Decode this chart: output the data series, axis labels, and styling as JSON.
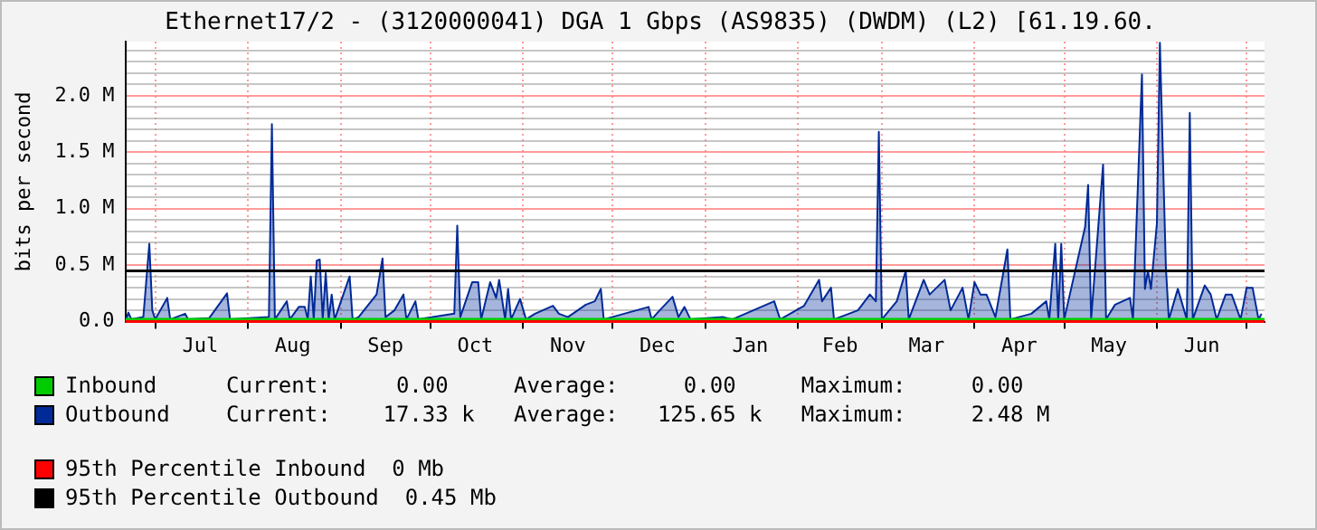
{
  "chart_data": {
    "type": "area",
    "title": "Ethernet17/2 - (3120000041) DGA 1 Gbps (AS9835) (DWDM) (L2) [61.19.60.",
    "ylabel": "bits per second",
    "xlim": [
      "2000-06-21",
      "2001-07-07"
    ],
    "xticks": [
      {
        "value": "2000-07-01",
        "label": null
      },
      {
        "value": "2000-07-16",
        "label": "Jul"
      },
      {
        "value": "2000-08-01",
        "label": null
      },
      {
        "value": "2000-08-16",
        "label": "Aug"
      },
      {
        "value": "2000-09-01",
        "label": null
      },
      {
        "value": "2000-09-16",
        "label": "Sep"
      },
      {
        "value": "2000-10-01",
        "label": null
      },
      {
        "value": "2000-10-16",
        "label": "Oct"
      },
      {
        "value": "2000-11-01",
        "label": null
      },
      {
        "value": "2000-11-16",
        "label": "Nov"
      },
      {
        "value": "2000-12-01",
        "label": null
      },
      {
        "value": "2000-12-16",
        "label": "Dec"
      },
      {
        "value": "2001-01-01",
        "label": null
      },
      {
        "value": "2001-01-16",
        "label": "Jan"
      },
      {
        "value": "2001-02-01",
        "label": null
      },
      {
        "value": "2001-02-15",
        "label": "Feb"
      },
      {
        "value": "2001-03-01",
        "label": null
      },
      {
        "value": "2001-03-16",
        "label": "Mar"
      },
      {
        "value": "2001-04-01",
        "label": null
      },
      {
        "value": "2001-04-16",
        "label": "Apr"
      },
      {
        "value": "2001-05-01",
        "label": null
      },
      {
        "value": "2001-05-16",
        "label": "May"
      },
      {
        "value": "2001-06-01",
        "label": null
      },
      {
        "value": "2001-06-16",
        "label": "Jun"
      },
      {
        "value": "2001-07-01",
        "label": null
      }
    ],
    "ylim": [
      0,
      2.48
    ],
    "yticks": [
      {
        "value": 0,
        "label": "0.0"
      },
      {
        "value": 0.1,
        "label": null
      },
      {
        "value": 0.2,
        "label": null
      },
      {
        "value": 0.3,
        "label": null
      },
      {
        "value": 0.4,
        "label": null
      },
      {
        "value": 0.5,
        "label": "0.5 M"
      },
      {
        "value": 0.6,
        "label": null
      },
      {
        "value": 0.7,
        "label": null
      },
      {
        "value": 0.8,
        "label": null
      },
      {
        "value": 0.9,
        "label": null
      },
      {
        "value": 1.0,
        "label": "1.0 M"
      },
      {
        "value": 1.1,
        "label": null
      },
      {
        "value": 1.2,
        "label": null
      },
      {
        "value": 1.3,
        "label": null
      },
      {
        "value": 1.4,
        "label": null
      },
      {
        "value": 1.5,
        "label": "1.5 M"
      },
      {
        "value": 1.6,
        "label": null
      },
      {
        "value": 1.7,
        "label": null
      },
      {
        "value": 1.8,
        "label": null
      },
      {
        "value": 1.9,
        "label": null
      },
      {
        "value": 2.0,
        "label": "2.0 M"
      },
      {
        "value": 2.1,
        "label": null
      },
      {
        "value": 2.2,
        "label": null
      },
      {
        "value": 2.3,
        "label": null
      },
      {
        "value": 2.4,
        "label": null
      }
    ],
    "grid": true,
    "legend": "bottom",
    "series": [
      {
        "name": "Inbound",
        "type": "line",
        "color": "#00cc00",
        "x": [
          "2000-06-21",
          "2001-07-07"
        ],
        "values": [
          0,
          0
        ]
      },
      {
        "name": "Outbound",
        "color": "#002a97",
        "x": [
          "2000-06-21",
          "2000-06-22",
          "2000-06-23",
          "2000-06-27",
          "2000-06-29",
          "2000-06-30",
          "2000-07-01",
          "2000-07-05",
          "2000-07-06",
          "2000-07-11",
          "2000-07-12",
          "2000-07-19",
          "2000-07-25",
          "2000-07-26",
          "2000-08-08",
          "2000-08-09",
          "2000-08-10",
          "2000-08-14",
          "2000-08-15",
          "2000-08-18",
          "2000-08-20",
          "2000-08-21",
          "2000-08-22",
          "2000-08-23",
          "2000-08-24",
          "2000-08-25",
          "2000-08-26",
          "2000-08-27",
          "2000-08-28",
          "2000-08-29",
          "2000-08-30",
          "2000-09-04",
          "2000-09-05",
          "2000-09-07",
          "2000-09-13",
          "2000-09-15",
          "2000-09-16",
          "2000-09-19",
          "2000-09-22",
          "2000-09-23",
          "2000-09-26",
          "2000-09-27",
          "2000-10-09",
          "2000-10-10",
          "2000-10-11",
          "2000-10-15",
          "2000-10-17",
          "2000-10-18",
          "2000-10-21",
          "2000-10-23",
          "2000-10-24",
          "2000-10-26",
          "2000-10-27",
          "2000-10-28",
          "2000-10-31",
          "2000-11-02",
          "2000-11-05",
          "2000-11-11",
          "2000-11-13",
          "2000-11-16",
          "2000-11-22",
          "2000-11-25",
          "2000-11-27",
          "2000-11-28",
          "2000-12-13",
          "2000-12-14",
          "2000-12-16",
          "2000-12-21",
          "2000-12-23",
          "2000-12-25",
          "2000-12-27",
          "2001-01-07",
          "2001-01-10",
          "2001-01-24",
          "2001-01-26",
          "2001-02-03",
          "2001-02-08",
          "2001-02-09",
          "2001-02-12",
          "2001-02-13",
          "2001-02-21",
          "2001-02-25",
          "2001-02-27",
          "2001-02-28",
          "2001-03-01",
          "2001-03-06",
          "2001-03-09",
          "2001-03-10",
          "2001-03-15",
          "2001-03-17",
          "2001-03-22",
          "2001-03-24",
          "2001-03-28",
          "2001-03-30",
          "2001-04-01",
          "2001-04-03",
          "2001-04-05",
          "2001-04-08",
          "2001-04-12",
          "2001-04-13",
          "2001-04-20",
          "2001-04-25",
          "2001-04-26",
          "2001-04-28",
          "2001-04-29",
          "2001-04-30",
          "2001-05-01",
          "2001-05-08",
          "2001-05-09",
          "2001-05-10",
          "2001-05-14",
          "2001-05-15",
          "2001-05-18",
          "2001-05-23",
          "2001-05-24",
          "2001-05-27",
          "2001-05-28",
          "2001-05-29",
          "2001-05-30",
          "2001-06-01",
          "2001-06-02",
          "2001-06-04",
          "2001-06-05",
          "2001-06-08",
          "2001-06-11",
          "2001-06-12",
          "2001-06-13",
          "2001-06-17",
          "2001-06-19",
          "2001-06-21",
          "2001-06-24",
          "2001-06-26",
          "2001-06-29",
          "2001-07-01",
          "2001-07-03",
          "2001-07-05",
          "2001-07-06"
        ],
        "values": [
          0,
          0.08,
          0.02,
          0.04,
          0.69,
          0.1,
          0.02,
          0.21,
          0.02,
          0.07,
          0.02,
          0.03,
          0.25,
          0.02,
          0.04,
          1.75,
          0.02,
          0.18,
          0.02,
          0.13,
          0.13,
          0.02,
          0.4,
          0.02,
          0.54,
          0.55,
          0.02,
          0.43,
          0.02,
          0.24,
          0.02,
          0.4,
          0.02,
          0.04,
          0.24,
          0.56,
          0.04,
          0.1,
          0.24,
          0.02,
          0.18,
          0.02,
          0.07,
          0.85,
          0.04,
          0.35,
          0.35,
          0.02,
          0.35,
          0.21,
          0.37,
          0.02,
          0.29,
          0.02,
          0.2,
          0.02,
          0.07,
          0.14,
          0.07,
          0.04,
          0.15,
          0.18,
          0.29,
          0.02,
          0.13,
          0.02,
          0.08,
          0.22,
          0.04,
          0.13,
          0.02,
          0.04,
          0.02,
          0.18,
          0.02,
          0.14,
          0.37,
          0.18,
          0.3,
          0.02,
          0.1,
          0.24,
          0.18,
          1.68,
          0.02,
          0.18,
          0.45,
          0.02,
          0.37,
          0.24,
          0.37,
          0.1,
          0.3,
          0.02,
          0.35,
          0.24,
          0.24,
          0.04,
          0.64,
          0.02,
          0.07,
          0.18,
          0.02,
          0.69,
          0.02,
          0.69,
          0.02,
          0.84,
          1.21,
          0.02,
          1.39,
          0.02,
          0.15,
          0.21,
          0.02,
          2.19,
          0.29,
          0.45,
          0.29,
          0.87,
          2.47,
          0.48,
          0.02,
          0.29,
          0.02,
          1.85,
          0.02,
          0.32,
          0.24,
          0.02,
          0.24,
          0.24,
          0.02,
          0.3,
          0.3,
          0.02,
          0.07
        ]
      }
    ],
    "ref_lines": [
      {
        "axis": "y",
        "value": 0,
        "label": "95th Percentile Inbound  0 Mb",
        "color": "#ff0000"
      },
      {
        "axis": "y",
        "value": 0.45,
        "label": "95th Percentile Outbound  0.45 Mb",
        "color": "#000000"
      }
    ],
    "annotations": [
      "Current:     0.00     Average:     0.00     Maximum:     0.00",
      "Current:    17.33 k   Average:   125.65 k   Maximum:     2.48 M"
    ]
  }
}
